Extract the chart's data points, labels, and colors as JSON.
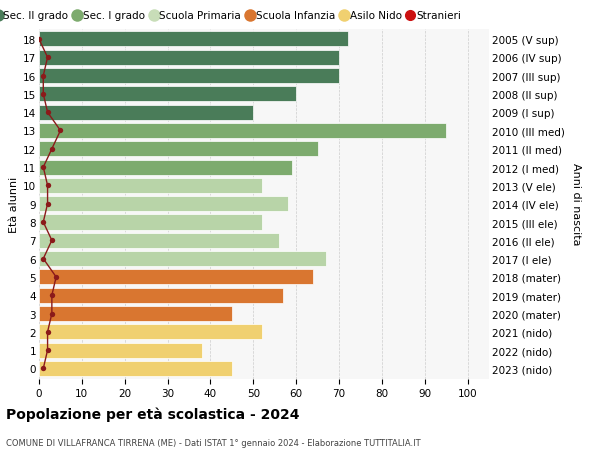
{
  "ages": [
    18,
    17,
    16,
    15,
    14,
    13,
    12,
    11,
    10,
    9,
    8,
    7,
    6,
    5,
    4,
    3,
    2,
    1,
    0
  ],
  "labels_right": [
    "2005 (V sup)",
    "2006 (IV sup)",
    "2007 (III sup)",
    "2008 (II sup)",
    "2009 (I sup)",
    "2010 (III med)",
    "2011 (II med)",
    "2012 (I med)",
    "2013 (V ele)",
    "2014 (IV ele)",
    "2015 (III ele)",
    "2016 (II ele)",
    "2017 (I ele)",
    "2018 (mater)",
    "2019 (mater)",
    "2020 (mater)",
    "2021 (nido)",
    "2022 (nido)",
    "2023 (nido)"
  ],
  "bar_values": [
    72,
    70,
    70,
    60,
    50,
    95,
    65,
    59,
    52,
    58,
    52,
    56,
    67,
    64,
    57,
    45,
    52,
    38,
    45
  ],
  "bar_colors": [
    "#4a7c59",
    "#4a7c59",
    "#4a7c59",
    "#4a7c59",
    "#4a7c59",
    "#7dab6e",
    "#7dab6e",
    "#7dab6e",
    "#b8d4a8",
    "#b8d4a8",
    "#b8d4a8",
    "#b8d4a8",
    "#b8d4a8",
    "#d97630",
    "#d97630",
    "#d97630",
    "#f0d070",
    "#f0d070",
    "#f0d070"
  ],
  "stranieri_values": [
    0,
    2,
    1,
    1,
    2,
    5,
    3,
    1,
    2,
    2,
    1,
    3,
    1,
    4,
    3,
    3,
    2,
    2,
    1
  ],
  "stranieri_color": "#8b1a1a",
  "legend_labels": [
    "Sec. II grado",
    "Sec. I grado",
    "Scuola Primaria",
    "Scuola Infanzia",
    "Asilo Nido",
    "Stranieri"
  ],
  "legend_colors": [
    "#4a7c59",
    "#7dab6e",
    "#c8ddb8",
    "#d97630",
    "#f0d070",
    "#cc1111"
  ],
  "title": "Popolazione per età scolastica - 2024",
  "subtitle": "COMUNE DI VILLAFRANCA TIRRENA (ME) - Dati ISTAT 1° gennaio 2024 - Elaborazione TUTTITALIA.IT",
  "ylabel_left": "Età alunni",
  "ylabel_right": "Anni di nascita",
  "xlim": [
    0,
    105
  ],
  "ylim": [
    -0.55,
    18.55
  ],
  "bg_color": "#ffffff",
  "bar_bg_color": "#f7f7f7",
  "grid_color": "#cccccc"
}
